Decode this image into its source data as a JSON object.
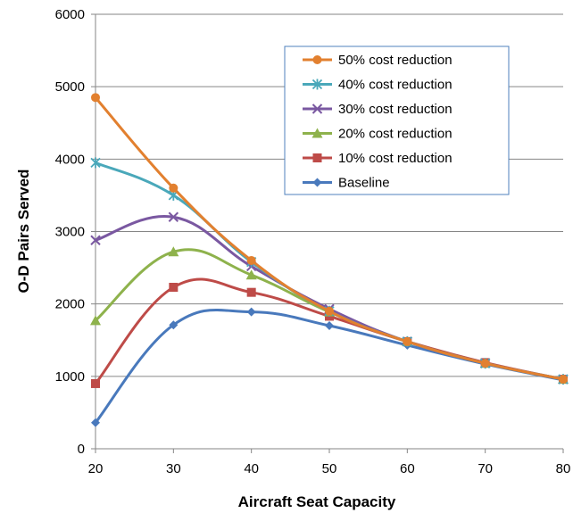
{
  "chart_data": {
    "type": "line",
    "title": "",
    "xlabel": "Aircraft Seat Capacity",
    "ylabel": "O-D Pairs Served",
    "x": [
      20,
      30,
      40,
      50,
      60,
      70,
      80
    ],
    "xlim": [
      20,
      80
    ],
    "ylim": [
      0,
      6000
    ],
    "xticks": [
      "20",
      "30",
      "40",
      "50",
      "60",
      "70",
      "80"
    ],
    "yticks": [
      "0",
      "1000",
      "2000",
      "3000",
      "4000",
      "5000",
      "6000"
    ],
    "grid": "horizontal",
    "legend_position": "top-right",
    "series": [
      {
        "name": "50% cost reduction",
        "color": "#E2802F",
        "marker": "circle",
        "values": [
          4850,
          3600,
          2600,
          1900,
          1480,
          1180,
          960
        ]
      },
      {
        "name": "40% cost reduction",
        "color": "#4AA8BA",
        "marker": "star",
        "values": [
          3950,
          3500,
          2580,
          1900,
          1480,
          1180,
          960
        ]
      },
      {
        "name": "30% cost reduction",
        "color": "#7A58A1",
        "marker": "x",
        "values": [
          2880,
          3200,
          2520,
          1930,
          1480,
          1180,
          960
        ]
      },
      {
        "name": "20% cost reduction",
        "color": "#8EB24C",
        "marker": "triangle",
        "values": [
          1770,
          2720,
          2400,
          1890,
          1480,
          1180,
          960
        ]
      },
      {
        "name": "10% cost reduction",
        "color": "#BE4B48",
        "marker": "square",
        "values": [
          900,
          2230,
          2160,
          1830,
          1480,
          1190,
          960
        ]
      },
      {
        "name": "Baseline",
        "color": "#4979BC",
        "marker": "diamond",
        "values": [
          360,
          1710,
          1890,
          1700,
          1430,
          1170,
          950
        ]
      }
    ]
  }
}
